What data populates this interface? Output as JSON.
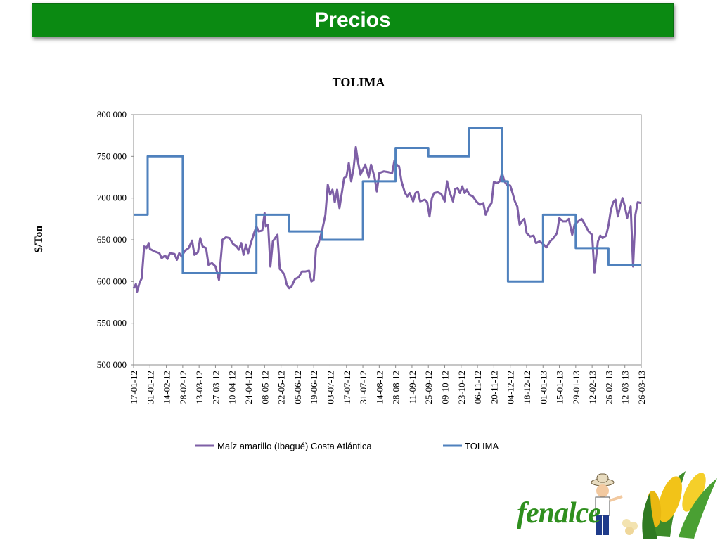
{
  "header": {
    "title": "Precios"
  },
  "logo": {
    "text": "fenalce"
  },
  "chart_data": {
    "type": "line",
    "title": "TOLIMA",
    "ylabel": "$/Ton",
    "xlabel": "",
    "ylim": [
      500000,
      800000
    ],
    "y_ticks": [
      500000,
      550000,
      600000,
      650000,
      700000,
      750000,
      800000
    ],
    "y_tick_labels": [
      "500 000",
      "550 000",
      "600 000",
      "650 000",
      "700 000",
      "750 000",
      "800 000"
    ],
    "x_ticks": [
      "17-01-12",
      "31-01-12",
      "14-02-12",
      "28-02-12",
      "13-03-12",
      "27-03-12",
      "10-04-12",
      "24-04-12",
      "08-05-12",
      "22-05-12",
      "05-06-12",
      "19-06-12",
      "03-07-12",
      "17-07-12",
      "31-07-12",
      "14-08-12",
      "28-08-12",
      "11-09-12",
      "25-09-12",
      "09-10-12",
      "23-10-12",
      "06-11-12",
      "20-11-12",
      "04-12-12",
      "18-12-12",
      "01-01-13",
      "15-01-13",
      "29-01-13",
      "12-02-13",
      "26-02-13",
      "12-03-13",
      "26-03-13"
    ],
    "grid": false,
    "legend_position": "bottom",
    "series": [
      {
        "name": "Maíz amarillo (Ibagué) Costa Atlántica",
        "color": "#7e5fa6",
        "points": [
          [
            "17-01-12",
            592000
          ],
          [
            "19-01-12",
            597000
          ],
          [
            "20-01-12",
            588000
          ],
          [
            "22-01-12",
            598000
          ],
          [
            "24-01-12",
            604000
          ],
          [
            "26-01-12",
            642000
          ],
          [
            "28-01-12",
            640000
          ],
          [
            "30-01-12",
            646000
          ],
          [
            "31-01-12",
            639000
          ],
          [
            "04-02-12",
            636000
          ],
          [
            "08-02-12",
            634000
          ],
          [
            "10-02-12",
            628000
          ],
          [
            "13-02-12",
            631000
          ],
          [
            "15-02-12",
            627000
          ],
          [
            "17-02-12",
            634000
          ],
          [
            "21-02-12",
            633000
          ],
          [
            "23-02-12",
            626000
          ],
          [
            "25-02-12",
            634000
          ],
          [
            "27-02-12",
            630000
          ],
          [
            "01-03-12",
            637000
          ],
          [
            "04-03-12",
            640000
          ],
          [
            "07-03-12",
            649000
          ],
          [
            "09-03-12",
            632000
          ],
          [
            "12-03-12",
            635000
          ],
          [
            "14-03-12",
            652000
          ],
          [
            "16-03-12",
            642000
          ],
          [
            "19-03-12",
            640000
          ],
          [
            "21-03-12",
            620000
          ],
          [
            "24-03-12",
            622000
          ],
          [
            "27-03-12",
            618000
          ],
          [
            "30-03-12",
            602000
          ],
          [
            "02-04-12",
            650000
          ],
          [
            "05-04-12",
            653000
          ],
          [
            "08-04-12",
            652000
          ],
          [
            "11-04-12",
            645000
          ],
          [
            "14-04-12",
            642000
          ],
          [
            "16-04-12",
            638000
          ],
          [
            "18-04-12",
            646000
          ],
          [
            "20-04-12",
            632000
          ],
          [
            "22-04-12",
            644000
          ],
          [
            "24-04-12",
            634000
          ],
          [
            "26-04-12",
            645000
          ],
          [
            "29-04-12",
            658000
          ],
          [
            "01-05-12",
            666000
          ],
          [
            "03-05-12",
            660000
          ],
          [
            "06-05-12",
            661000
          ],
          [
            "08-05-12",
            682000
          ],
          [
            "09-05-12",
            666000
          ],
          [
            "11-05-12",
            668000
          ],
          [
            "13-05-12",
            618000
          ],
          [
            "15-05-12",
            648000
          ],
          [
            "17-05-12",
            652000
          ],
          [
            "19-05-12",
            656000
          ],
          [
            "21-05-12",
            615000
          ],
          [
            "23-05-12",
            612000
          ],
          [
            "25-05-12",
            608000
          ],
          [
            "27-05-12",
            596000
          ],
          [
            "29-05-12",
            592000
          ],
          [
            "31-05-12",
            594000
          ],
          [
            "03-06-12",
            603000
          ],
          [
            "06-06-12",
            605000
          ],
          [
            "09-06-12",
            612000
          ],
          [
            "12-06-12",
            612000
          ],
          [
            "15-06-12",
            613000
          ],
          [
            "17-06-12",
            600000
          ],
          [
            "19-06-12",
            602000
          ],
          [
            "21-06-12",
            640000
          ],
          [
            "23-06-12",
            645000
          ],
          [
            "26-06-12",
            660000
          ],
          [
            "29-06-12",
            680000
          ],
          [
            "01-07-12",
            716000
          ],
          [
            "03-07-12",
            704000
          ],
          [
            "05-07-12",
            710000
          ],
          [
            "07-07-12",
            695000
          ],
          [
            "09-07-12",
            710000
          ],
          [
            "11-07-12",
            688000
          ],
          [
            "13-07-12",
            706000
          ],
          [
            "15-07-12",
            724000
          ],
          [
            "17-07-12",
            726000
          ],
          [
            "19-07-12",
            742000
          ],
          [
            "21-07-12",
            720000
          ],
          [
            "23-07-12",
            735000
          ],
          [
            "25-07-12",
            761000
          ],
          [
            "27-07-12",
            742000
          ],
          [
            "29-07-12",
            728000
          ],
          [
            "31-07-12",
            734000
          ],
          [
            "02-08-12",
            740000
          ],
          [
            "05-08-12",
            725000
          ],
          [
            "07-08-12",
            740000
          ],
          [
            "10-08-12",
            725000
          ],
          [
            "12-08-12",
            708000
          ],
          [
            "14-08-12",
            730000
          ],
          [
            "18-08-12",
            732000
          ],
          [
            "22-08-12",
            731000
          ],
          [
            "25-08-12",
            730000
          ],
          [
            "27-08-12",
            745000
          ],
          [
            "29-08-12",
            740000
          ],
          [
            "31-08-12",
            738000
          ],
          [
            "02-09-12",
            720000
          ],
          [
            "05-09-12",
            706000
          ],
          [
            "07-09-12",
            702000
          ],
          [
            "09-09-12",
            706000
          ],
          [
            "12-09-12",
            696000
          ],
          [
            "14-09-12",
            706000
          ],
          [
            "16-09-12",
            708000
          ],
          [
            "18-09-12",
            696000
          ],
          [
            "22-09-12",
            698000
          ],
          [
            "24-09-12",
            695000
          ],
          [
            "26-09-12",
            678000
          ],
          [
            "28-09-12",
            700000
          ],
          [
            "30-09-12",
            706000
          ],
          [
            "03-10-12",
            707000
          ],
          [
            "06-10-12",
            705000
          ],
          [
            "09-10-12",
            696000
          ],
          [
            "11-10-12",
            720000
          ],
          [
            "13-10-12",
            708000
          ],
          [
            "16-10-12",
            696000
          ],
          [
            "18-10-12",
            711000
          ],
          [
            "20-10-12",
            712000
          ],
          [
            "22-10-12",
            706000
          ],
          [
            "24-10-12",
            714000
          ],
          [
            "26-10-12",
            706000
          ],
          [
            "28-10-12",
            710000
          ],
          [
            "30-10-12",
            704000
          ],
          [
            "02-11-12",
            702000
          ],
          [
            "05-11-12",
            696000
          ],
          [
            "08-11-12",
            692000
          ],
          [
            "11-11-12",
            694000
          ],
          [
            "13-11-12",
            680000
          ],
          [
            "16-11-12",
            690000
          ],
          [
            "18-11-12",
            694000
          ],
          [
            "20-11-12",
            719000
          ],
          [
            "23-11-12",
            718000
          ],
          [
            "25-11-12",
            720000
          ],
          [
            "27-11-12",
            730000
          ],
          [
            "29-11-12",
            720000
          ],
          [
            "01-12-12",
            716000
          ],
          [
            "04-12-12",
            715000
          ],
          [
            "06-12-12",
            706000
          ],
          [
            "08-12-12",
            696000
          ],
          [
            "10-12-12",
            690000
          ],
          [
            "12-12-12",
            668000
          ],
          [
            "14-12-12",
            672000
          ],
          [
            "16-12-12",
            675000
          ],
          [
            "18-12-12",
            658000
          ],
          [
            "21-12-12",
            654000
          ],
          [
            "24-12-12",
            655000
          ],
          [
            "26-12-12",
            646000
          ],
          [
            "29-12-12",
            648000
          ],
          [
            "01-01-13",
            645000
          ],
          [
            "04-01-13",
            641000
          ],
          [
            "07-01-13",
            648000
          ],
          [
            "10-01-13",
            652000
          ],
          [
            "13-01-13",
            658000
          ],
          [
            "15-01-13",
            676000
          ],
          [
            "18-01-13",
            672000
          ],
          [
            "21-01-13",
            672000
          ],
          [
            "23-01-13",
            675000
          ],
          [
            "26-01-13",
            656000
          ],
          [
            "28-01-13",
            668000
          ],
          [
            "31-01-13",
            672000
          ],
          [
            "03-02-13",
            675000
          ],
          [
            "06-02-13",
            668000
          ],
          [
            "09-02-13",
            660000
          ],
          [
            "12-02-13",
            656000
          ],
          [
            "14-02-13",
            611000
          ],
          [
            "17-02-13",
            648000
          ],
          [
            "19-02-13",
            655000
          ],
          [
            "21-02-13",
            652000
          ],
          [
            "24-02-13",
            655000
          ],
          [
            "26-02-13",
            667000
          ],
          [
            "28-02-13",
            685000
          ],
          [
            "02-03-13",
            695000
          ],
          [
            "04-03-13",
            698000
          ],
          [
            "06-03-13",
            678000
          ],
          [
            "08-03-13",
            690000
          ],
          [
            "10-03-13",
            700000
          ],
          [
            "12-03-13",
            690000
          ],
          [
            "14-03-13",
            676000
          ],
          [
            "17-03-13",
            690000
          ],
          [
            "19-03-13",
            618000
          ],
          [
            "21-03-13",
            680000
          ],
          [
            "23-03-13",
            695000
          ],
          [
            "26-03-13",
            694000
          ]
        ]
      },
      {
        "name": "TOLIMA",
        "color": "#4f81bd",
        "points": [
          [
            "17-01-12",
            680000
          ],
          [
            "29-01-12",
            680000
          ],
          [
            "29-01-12",
            750000
          ],
          [
            "28-02-12",
            750000
          ],
          [
            "28-02-12",
            610000
          ],
          [
            "01-05-12",
            610000
          ],
          [
            "01-05-12",
            680000
          ],
          [
            "29-05-12",
            680000
          ],
          [
            "29-05-12",
            660000
          ],
          [
            "26-06-12",
            660000
          ],
          [
            "26-06-12",
            650000
          ],
          [
            "31-07-12",
            650000
          ],
          [
            "31-07-12",
            720000
          ],
          [
            "28-08-12",
            720000
          ],
          [
            "28-08-12",
            760000
          ],
          [
            "25-09-12",
            760000
          ],
          [
            "25-09-12",
            750000
          ],
          [
            "30-10-12",
            750000
          ],
          [
            "30-10-12",
            784000
          ],
          [
            "27-11-12",
            784000
          ],
          [
            "27-11-12",
            720000
          ],
          [
            "02-12-12",
            720000
          ],
          [
            "02-12-12",
            600000
          ],
          [
            "01-01-13",
            600000
          ],
          [
            "01-01-13",
            680000
          ],
          [
            "29-01-13",
            680000
          ],
          [
            "29-01-13",
            640000
          ],
          [
            "26-02-13",
            640000
          ],
          [
            "26-02-13",
            620000
          ],
          [
            "26-03-13",
            620000
          ]
        ]
      }
    ]
  }
}
